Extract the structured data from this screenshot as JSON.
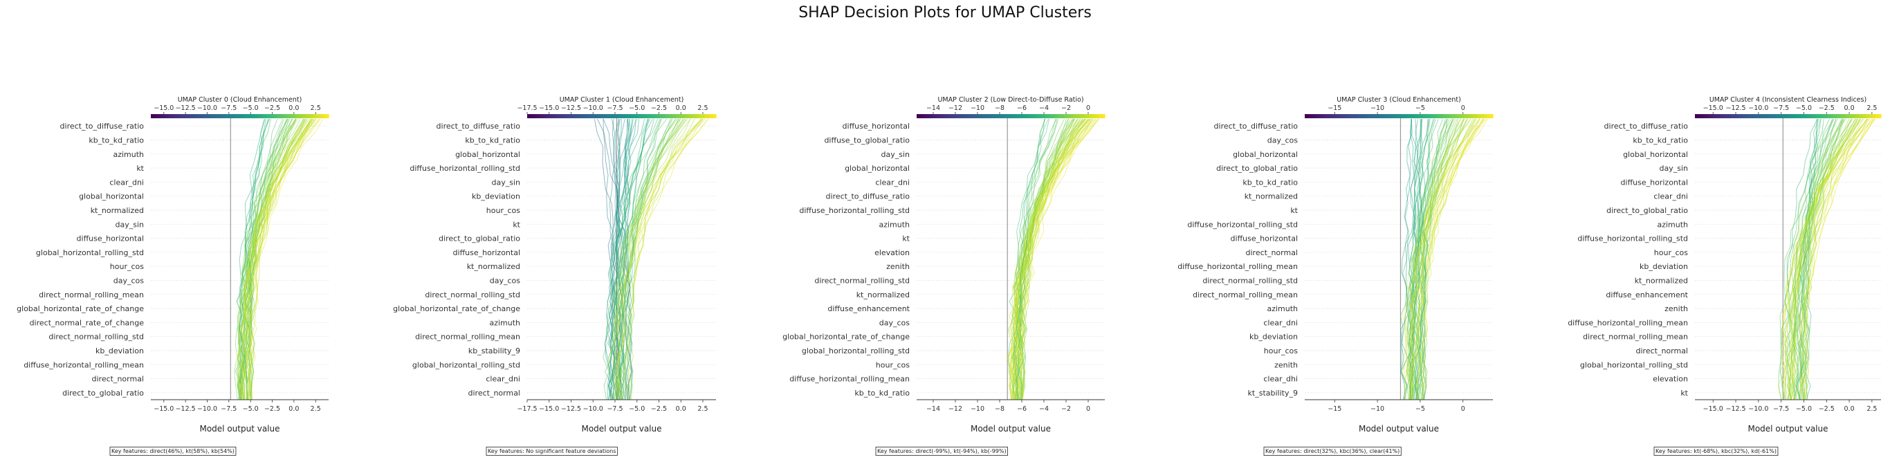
{
  "title": "SHAP Decision Plots for UMAP Clusters",
  "chart_data": [
    {
      "type": "line",
      "title": "UMAP Cluster 0 (Cloud Enhancement)",
      "xlabel": "Model output value",
      "xlim": [
        -16.5,
        4.0
      ],
      "xticks": [
        -15.0,
        -12.5,
        -10.0,
        -7.5,
        -5.0,
        -2.5,
        0.0,
        2.5
      ],
      "xticklabels": [
        "−15.0",
        "−12.5",
        "−10.0",
        "−7.5",
        "−5.0",
        "−2.5",
        "0.0",
        "2.5"
      ],
      "colorbar_ticks": [
        -15.0,
        -12.5,
        -10.0,
        -7.5,
        -5.0,
        -2.5,
        0.0,
        2.5
      ],
      "colorbar_ticklabels": [
        "−15.0",
        "−12.5",
        "−10.0",
        "−7.5",
        "−5.0",
        "−2.5",
        "0.0",
        "2.5"
      ],
      "base_value": -7.3,
      "features": [
        "direct_to_diffuse_ratio",
        "kb_to_kd_ratio",
        "azimuth",
        "kt",
        "clear_dni",
        "global_horizontal",
        "kt_normalized",
        "day_sin",
        "diffuse_horizontal",
        "global_horizontal_rolling_std",
        "hour_cos",
        "day_cos",
        "direct_normal_rolling_mean",
        "global_horizontal_rate_of_change",
        "direct_normal_rate_of_change",
        "direct_normal_rolling_std",
        "kb_deviation",
        "diffuse_horizontal_rolling_mean",
        "direct_normal",
        "direct_to_global_ratio"
      ],
      "path_summary": {
        "start_range": [
          -6.5,
          -4.8
        ],
        "end_range": [
          -3.5,
          3.5
        ],
        "n_lines": 55
      },
      "key_features": "Key features: direct(46%), kt(58%), kb(54%)"
    },
    {
      "type": "line",
      "title": "UMAP Cluster 1 (Cloud Enhancement)",
      "xlabel": "Model output value",
      "xlim": [
        -17.5,
        4.0
      ],
      "xticks": [
        -17.5,
        -15.0,
        -12.5,
        -10.0,
        -7.5,
        -5.0,
        -2.5,
        0.0,
        2.5
      ],
      "xticklabels": [
        "−17.5",
        "−15.0",
        "−12.5",
        "−10.0",
        "−7.5",
        "−5.0",
        "−2.5",
        "0.0",
        "2.5"
      ],
      "colorbar_ticks": [
        -17.5,
        -15.0,
        -12.5,
        -10.0,
        -7.5,
        -5.0,
        -2.5,
        0.0,
        2.5
      ],
      "colorbar_ticklabels": [
        "−17.5",
        "−15.0",
        "−12.5",
        "−10.0",
        "−7.5",
        "−5.0",
        "−2.5",
        "0.0",
        "2.5"
      ],
      "base_value": -7.3,
      "features": [
        "direct_to_diffuse_ratio",
        "kb_to_kd_ratio",
        "global_horizontal",
        "diffuse_horizontal_rolling_std",
        "day_sin",
        "kb_deviation",
        "hour_cos",
        "kt",
        "direct_to_global_ratio",
        "diffuse_horizontal",
        "kt_normalized",
        "day_cos",
        "direct_normal_rolling_std",
        "global_horizontal_rate_of_change",
        "azimuth",
        "direct_normal_rolling_mean",
        "kb_stability_9",
        "global_horizontal_rolling_std",
        "clear_dni",
        "direct_normal"
      ],
      "path_summary": {
        "start_range": [
          -8.5,
          -5.5
        ],
        "end_range": [
          -11.0,
          3.5
        ],
        "n_lines": 60
      },
      "key_features": "Key features: No significant feature deviations"
    },
    {
      "type": "line",
      "title": "UMAP Cluster 2 (Low Direct-to-Diffuse Ratio)",
      "xlabel": "Model output value",
      "xlim": [
        -15.5,
        1.5
      ],
      "xticks": [
        -14,
        -12,
        -10,
        -8,
        -6,
        -4,
        -2,
        0
      ],
      "xticklabels": [
        "−14",
        "−12",
        "−10",
        "−8",
        "−6",
        "−4",
        "−2",
        "0"
      ],
      "colorbar_ticks": [
        -14,
        -12,
        -10,
        -8,
        -6,
        -4,
        -2,
        0
      ],
      "colorbar_ticklabels": [
        "−14",
        "−12",
        "−10",
        "−8",
        "−6",
        "−4",
        "−2",
        "0"
      ],
      "base_value": -7.3,
      "features": [
        "diffuse_horizontal",
        "diffuse_to_global_ratio",
        "day_sin",
        "global_horizontal",
        "clear_dni",
        "direct_to_diffuse_ratio",
        "diffuse_horizontal_rolling_std",
        "azimuth",
        "kt",
        "elevation",
        "zenith",
        "direct_normal_rolling_std",
        "kt_normalized",
        "diffuse_enhancement",
        "day_cos",
        "global_horizontal_rate_of_change",
        "global_horizontal_rolling_std",
        "hour_cos",
        "diffuse_horizontal_rolling_mean",
        "kb_to_kd_ratio"
      ],
      "path_summary": {
        "start_range": [
          -7.0,
          -5.8
        ],
        "end_range": [
          -4.0,
          1.0
        ],
        "n_lines": 55
      },
      "key_features": "Key features: direct(-99%), kt(-94%), kb(-99%)"
    },
    {
      "type": "line",
      "title": "UMAP Cluster 3 (Cloud Enhancement)",
      "xlabel": "Model output value",
      "xlim": [
        -18.5,
        3.5
      ],
      "xticks": [
        -15,
        -10,
        -5,
        0
      ],
      "xticklabels": [
        "−15",
        "−10",
        "−5",
        "0"
      ],
      "colorbar_ticks": [
        -15,
        -10,
        -5,
        0
      ],
      "colorbar_ticklabels": [
        "−15",
        "−10",
        "−5",
        "0"
      ],
      "base_value": -7.3,
      "features": [
        "direct_to_diffuse_ratio",
        "day_cos",
        "global_horizontal",
        "direct_to_global_ratio",
        "kb_to_kd_ratio",
        "kt_normalized",
        "kt",
        "diffuse_horizontal_rolling_std",
        "diffuse_horizontal",
        "direct_normal",
        "diffuse_horizontal_rolling_mean",
        "direct_normal_rolling_std",
        "direct_normal_rolling_mean",
        "azimuth",
        "clear_dni",
        "kb_deviation",
        "hour_cos",
        "zenith",
        "clear_dhi",
        "kt_stability_9"
      ],
      "path_summary": {
        "start_range": [
          -7.0,
          -4.5
        ],
        "end_range": [
          -6.5,
          3.0
        ],
        "n_lines": 60
      },
      "key_features": "Key features: direct(32%), kbc(36%), clear(41%)"
    },
    {
      "type": "line",
      "title": "UMAP Cluster 4 (Inconsistent Clearness Indices)",
      "xlabel": "Model output value",
      "xlim": [
        -17.0,
        3.5
      ],
      "xticks": [
        -15.0,
        -12.5,
        -10.0,
        -7.5,
        -5.0,
        -2.5,
        0.0,
        2.5
      ],
      "xticklabels": [
        "−15.0",
        "−12.5",
        "−10.0",
        "−7.5",
        "−5.0",
        "−2.5",
        "0.0",
        "2.5"
      ],
      "colorbar_ticks": [
        -15.0,
        -12.5,
        -10.0,
        -7.5,
        -5.0,
        -2.5,
        0.0,
        2.5
      ],
      "colorbar_ticklabels": [
        "−15.0",
        "−12.5",
        "−10.0",
        "−7.5",
        "−5.0",
        "−2.5",
        "0.0",
        "2.5"
      ],
      "base_value": -7.3,
      "features": [
        "direct_to_diffuse_ratio",
        "kb_to_kd_ratio",
        "global_horizontal",
        "day_sin",
        "diffuse_horizontal",
        "clear_dni",
        "direct_to_global_ratio",
        "azimuth",
        "diffuse_horizontal_rolling_std",
        "hour_cos",
        "kb_deviation",
        "kt_normalized",
        "diffuse_enhancement",
        "zenith",
        "diffuse_horizontal_rolling_mean",
        "direct_normal_rolling_mean",
        "direct_normal",
        "global_horizontal_rolling_std",
        "elevation",
        "kt"
      ],
      "path_summary": {
        "start_range": [
          -7.5,
          -4.5
        ],
        "end_range": [
          -4.0,
          3.0
        ],
        "n_lines": 55
      },
      "key_features": "Key features: kt(-68%), kbc(32%), kd(-61%)"
    }
  ]
}
